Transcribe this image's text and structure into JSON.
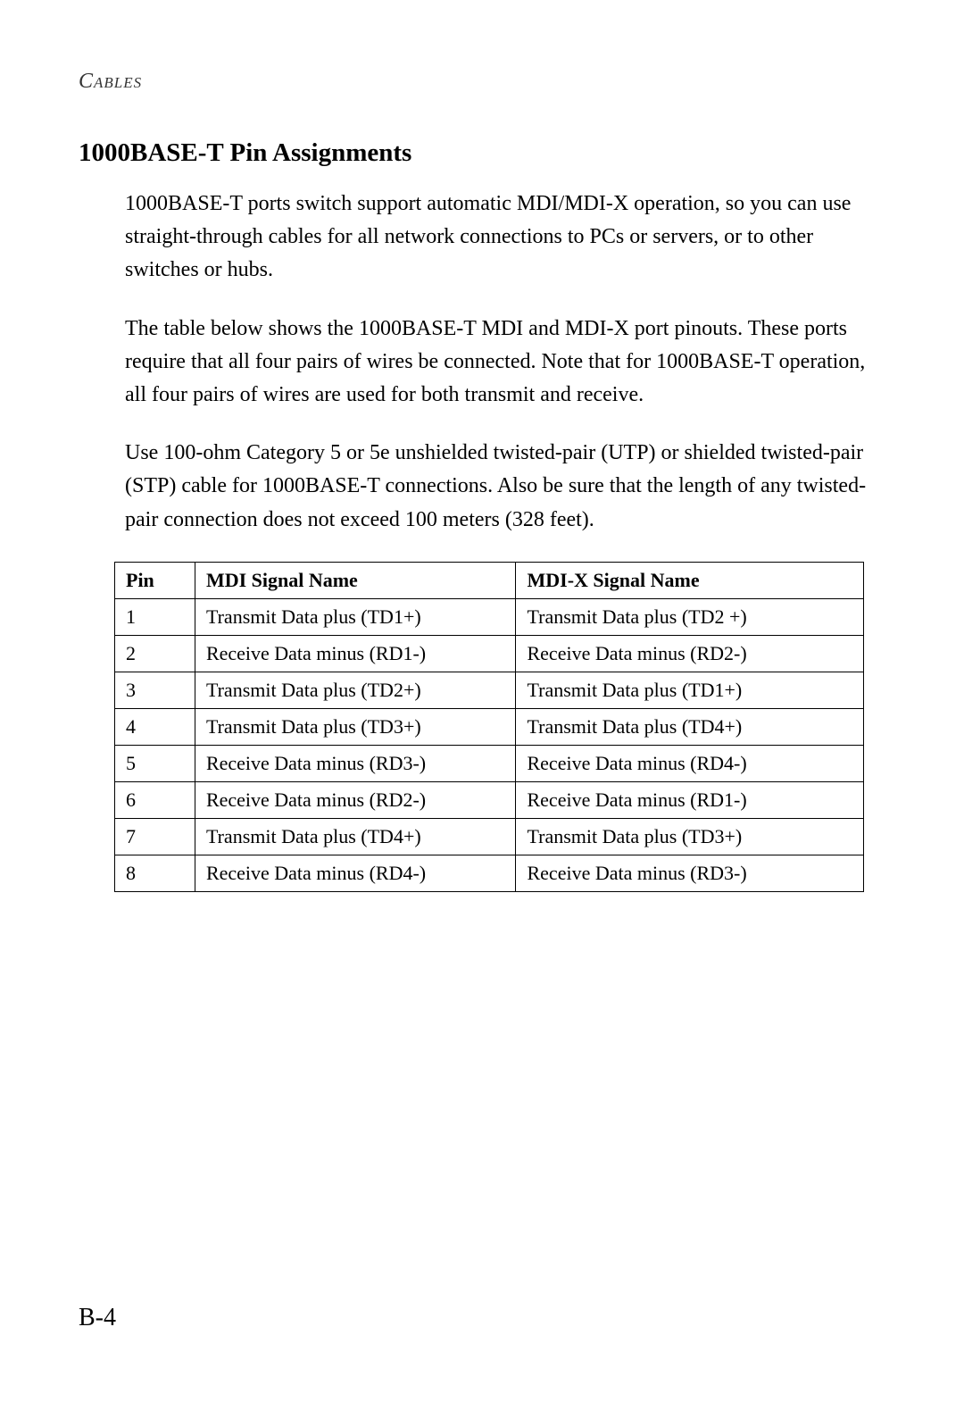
{
  "header": "Cables",
  "section_title": "1000BASE-T Pin Assignments",
  "paragraphs": [
    "1000BASE-T ports switch support automatic MDI/MDI-X operation, so you can use straight-through cables for all network connections to PCs or servers, or to other switches or hubs.",
    "The table below shows the 1000BASE-T MDI and MDI-X port pinouts. These ports require that all four pairs of wires be connected. Note that for 1000BASE-T operation, all four pairs of wires are used for both transmit and receive.",
    "Use 100-ohm Category 5 or 5e unshielded twisted-pair (UTP) or shielded twisted-pair (STP) cable for 1000BASE-T connections. Also be sure that the length of any twisted-pair connection does not exceed 100 meters (328 feet)."
  ],
  "table": {
    "columns": [
      "Pin",
      "MDI Signal Name",
      "MDI-X Signal Name"
    ],
    "rows": [
      [
        "1",
        "Transmit Data plus (TD1+)",
        "Transmit Data plus (TD2 +)"
      ],
      [
        "2",
        "Receive Data minus (RD1-)",
        "Receive Data minus (RD2-)"
      ],
      [
        "3",
        "Transmit Data plus (TD2+)",
        "Transmit Data plus (TD1+)"
      ],
      [
        "4",
        "Transmit Data plus (TD3+)",
        "Transmit Data plus (TD4+)"
      ],
      [
        "5",
        "Receive Data minus (RD3-)",
        "Receive Data minus (RD4-)"
      ],
      [
        "6",
        "Receive Data minus (RD2-)",
        "Receive Data minus (RD1-)"
      ],
      [
        "7",
        "Transmit Data plus (TD4+)",
        "Transmit Data plus (TD3+)"
      ],
      [
        "8",
        "Receive Data minus (RD4-)",
        "Receive Data minus (RD3-)"
      ]
    ]
  },
  "page_number": "B-4"
}
